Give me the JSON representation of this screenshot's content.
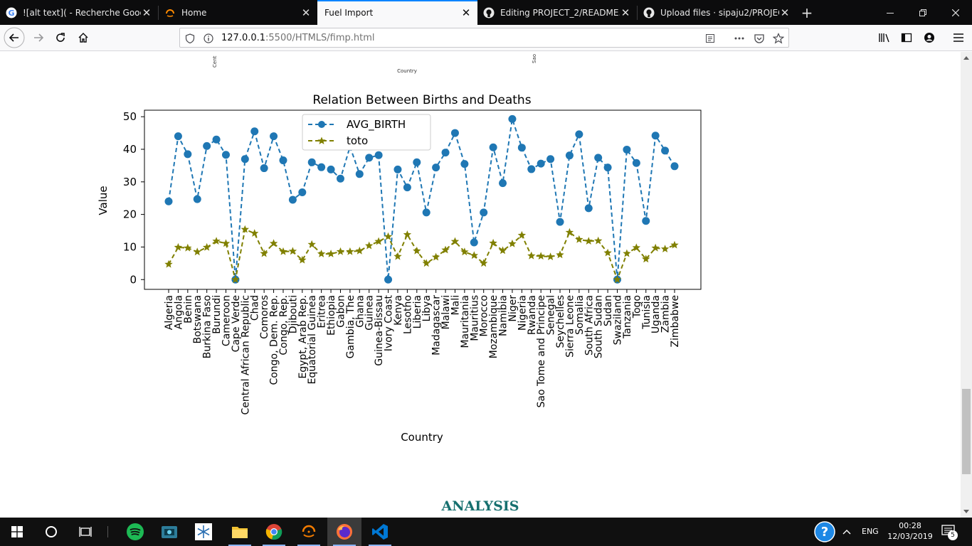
{
  "browser": {
    "tabs": [
      {
        "title": "![alt text]( - Recherche Google",
        "icon": "google-icon"
      },
      {
        "title": "Home",
        "icon": "orange-arc-icon"
      },
      {
        "title": "Fuel Import",
        "icon": "",
        "active": true
      },
      {
        "title": "Editing PROJECT_2/README.m",
        "icon": "github-icon"
      },
      {
        "title": "Upload files · sipaju2/PROJECT_",
        "icon": "github-icon"
      }
    ],
    "url_host": "127.0.0.1",
    "url_rest": ":5500/HTMLS/fimp.html"
  },
  "page": {
    "top_chart_xlabel": "Country",
    "top_chart_fragment_left": "Cent",
    "top_chart_fragment_right": "Sao",
    "section_heading": "ANALYSIS"
  },
  "chart_data": {
    "type": "line",
    "title": "Relation Between Births and Deaths",
    "xlabel": "Country",
    "ylabel": "Value",
    "ylim": [
      -3,
      52
    ],
    "yticks": [
      0,
      10,
      20,
      30,
      40,
      50
    ],
    "legend_position": "top-center",
    "grid": false,
    "categories": [
      "Algeria",
      "Angola",
      "Benin",
      "Botswana",
      "Burkina Faso",
      "Burundi",
      "Cameroon",
      "Cape Verde",
      "Central African Republic",
      "Chad",
      "Comoros",
      "Congo, Dem. Rep.",
      "Congo, Rep.",
      "Djibouti",
      "Egypt, Arab Rep.",
      "Equatorial Guinea",
      "Eritrea",
      "Ethiopia",
      "Gabon",
      "Gambia, The",
      "Ghana",
      "Guinea",
      "Guinea-Bissau",
      "Ivory Coast",
      "Kenya",
      "Lesotho",
      "Liberia",
      "Libya",
      "Madagascar",
      "Malawi",
      "Mali",
      "Mauritania",
      "Mauritius",
      "Morocco",
      "Mozambique",
      "Namibia",
      "Niger",
      "Nigeria",
      "Rwanda",
      "Sao Tome and Principe",
      "Senegal",
      "Seychelles",
      "Sierra Leone",
      "Somalia",
      "South Africa",
      "South Sudan",
      "Sudan",
      "Swaziland",
      "Tanzania",
      "Togo",
      "Tunisia",
      "Uganda",
      "Zambia",
      "Zimbabwe"
    ],
    "series": [
      {
        "name": "AVG_BIRTH",
        "color": "#1f77b4",
        "style": "dashed",
        "marker": "circle",
        "values": [
          24,
          44,
          38.5,
          24.7,
          41,
          43,
          38.3,
          0,
          37,
          45.5,
          34.2,
          44,
          36.6,
          24.5,
          26.8,
          36,
          34.5,
          33.8,
          31,
          40.8,
          32.4,
          37.4,
          38.2,
          0,
          33.8,
          28.3,
          36,
          20.6,
          34.4,
          39,
          45,
          35.5,
          11.4,
          20.6,
          40.6,
          29.6,
          49.3,
          40.5,
          33.9,
          35.6,
          37,
          17.7,
          38.1,
          44.6,
          21.9,
          37.4,
          34.4,
          0,
          39.9,
          35.8,
          18,
          44.2,
          39.6,
          34.8
        ]
      },
      {
        "name": "toto",
        "color": "#808000",
        "style": "dashed",
        "marker": "star",
        "values": [
          4.7,
          9.9,
          9.7,
          8.5,
          9.9,
          11.8,
          11.1,
          0,
          15.4,
          14.2,
          8,
          11.1,
          8.6,
          8.7,
          6,
          10.8,
          7.9,
          7.9,
          8.6,
          8.6,
          8.8,
          10.4,
          11.7,
          13.2,
          7.1,
          13.8,
          8.8,
          5,
          6.9,
          9.1,
          11.7,
          8.5,
          7.4,
          5,
          11.2,
          8.9,
          11,
          13.6,
          7.3,
          7.2,
          7,
          7.6,
          14.5,
          12.3,
          11.8,
          11.9,
          8.2,
          0,
          8,
          9.8,
          6.3,
          9.7,
          9.4,
          10.6
        ]
      }
    ]
  },
  "taskbar": {
    "language": "ENG",
    "time": "00:28",
    "date": "12/03/2019",
    "notification_count": "5"
  }
}
